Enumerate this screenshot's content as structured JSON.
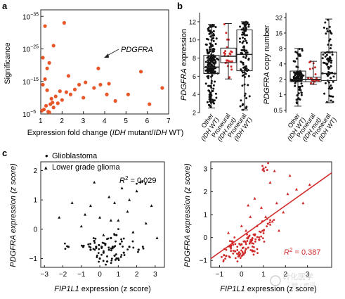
{
  "panels": {
    "a": {
      "letter": "a",
      "xlabel_pre": "Expression fold change (",
      "xlabel_italic": "IDH",
      "xlabel_mid": " mutant/",
      "xlabel_italic2": "IDH",
      "xlabel_post": " WT)",
      "ylabel": "Significance",
      "yticks": [
        "10",
        "10",
        "10",
        "10"
      ],
      "yexps": [
        "−35",
        "−25",
        "−15",
        "−5"
      ],
      "xticks": [
        "1",
        "2",
        "3",
        "4",
        "5",
        "6",
        "7"
      ],
      "annotation": "PDGFRA"
    },
    "b": {
      "letter": "b",
      "left": {
        "ylabel_italic": "PDGFRA",
        "ylabel_rest": " expression",
        "yticks": [
          "2",
          "4",
          "6",
          "8",
          "10",
          "12"
        ],
        "categories": [
          [
            "Other",
            "(IDH WT)"
          ],
          [
            "Proneural",
            "(IDH mut)"
          ],
          [
            "Proneural",
            "(IDH WT)"
          ]
        ]
      },
      "right": {
        "ylabel_italic": "PDGFRA",
        "ylabel_rest": " copy number",
        "yticks": [
          "0.5",
          "1",
          "2",
          "4",
          "8",
          "16",
          "32"
        ],
        "categories": [
          [
            "Other",
            "(IDH WT)"
          ],
          [
            "Proneural",
            "(IDH mut)"
          ],
          [
            "Proneural",
            "(IDH WT)"
          ]
        ]
      }
    },
    "c": {
      "letter": "c",
      "legend": [
        {
          "symbol": "•",
          "label": "Glioblastoma"
        },
        {
          "symbol": "▴",
          "label": "Lower grade glioma"
        }
      ],
      "left": {
        "ylabel_italic": "PDGFRA",
        "ylabel_rest": " expression (z score)",
        "xlabel_italic": "FIP1L1",
        "xlabel_rest": " expression (z score)",
        "r2_label": "R",
        "r2_value": " = 0.029",
        "xticks": [
          "−3",
          "−2",
          "−1",
          "0",
          "1",
          "2",
          "3"
        ],
        "yticks": [
          "−1",
          "0",
          "1",
          "2"
        ]
      },
      "right": {
        "ylabel_italic": "PDGFRA",
        "ylabel_rest": " expression (z score)",
        "xlabel_italic": "FIP1L1",
        "xlabel_rest": " expression (z score)",
        "r2_label": "R",
        "r2_value": " = 0.387",
        "xticks": [
          "−1",
          "0",
          "1",
          "2",
          "3"
        ],
        "yticks": [
          "−1",
          "0",
          "1",
          "2",
          "3"
        ]
      }
    }
  },
  "watermark": {
    "line1": "转化医学",
    "line2": "网 / 资讯"
  },
  "colors": {
    "accent": "#e8572a",
    "red": "#d12a2a",
    "axis": "#222222",
    "pink": "#e98a9a"
  },
  "chart_data": [
    {
      "type": "scatter",
      "panel": "a",
      "xlim": [
        1,
        7
      ],
      "y_scale": "log",
      "ylim": [
        1e-05,
        1e-35
      ],
      "points": [
        [
          1.1,
          1e-14
        ],
        [
          1.2,
          2e-16
        ],
        [
          1.3,
          5e-13
        ],
        [
          1.4,
          3e-06
        ],
        [
          1.5,
          2e-10
        ],
        [
          1.25,
          3e-08
        ],
        [
          1.6,
          1e-07
        ],
        [
          1.8,
          5e-09
        ],
        [
          1.2,
          1e-32
        ],
        [
          1.6,
          1e-26
        ],
        [
          2.1,
          1e-33
        ],
        [
          2.3,
          2e-17
        ],
        [
          2.4,
          1e-11
        ],
        [
          2.6,
          3e-13
        ],
        [
          2.8,
          1e-14
        ],
        [
          3.0,
          1e-10
        ],
        [
          3.1,
          2e-15
        ],
        [
          3.5,
          1e-13
        ],
        [
          3.7,
          1e-19
        ],
        [
          3.8,
          1e-14
        ],
        [
          4.1,
          1e-11
        ],
        [
          4.2,
          5e-15
        ],
        [
          4.5,
          1e-09
        ],
        [
          5.1,
          1e-11
        ],
        [
          5.7,
          1e-18
        ],
        [
          6.1,
          1e-08
        ],
        [
          6.7,
          1e-13
        ],
        [
          1.05,
          1e-06
        ],
        [
          1.15,
          4e-07
        ],
        [
          1.35,
          2e-06
        ],
        [
          1.45,
          1e-08
        ],
        [
          1.55,
          3e-09
        ],
        [
          1.7,
          4e-11
        ],
        [
          1.9,
          1e-12
        ],
        [
          2.0,
          5e-10
        ],
        [
          2.2,
          2e-12
        ],
        [
          1.3,
          1e-19
        ],
        [
          1.1,
          5e-23
        ],
        [
          1.4,
          2e-21
        ]
      ],
      "annotations": [
        {
          "label": "PDGFRA",
          "x": 3.7,
          "y": 1e-19
        }
      ]
    },
    {
      "type": "box",
      "panel": "b-left",
      "ylabel": "PDGFRA expression",
      "categories": [
        "Other (IDH WT)",
        "Proneural (IDH mut)",
        "Proneural (IDH WT)"
      ],
      "boxes": [
        {
          "whisker_low": 2.5,
          "q1": 6.3,
          "median": 7.0,
          "q3": 8.3,
          "whisker_high": 11.7
        },
        {
          "whisker_low": 5.7,
          "q1": 7.5,
          "median": 8.2,
          "q3": 9.1,
          "whisker_high": 11.8
        },
        {
          "whisker_low": 2.3,
          "q1": 6.6,
          "median": 8.4,
          "q3": 11.1,
          "whisker_high": 12.0
        }
      ],
      "ylim": [
        2,
        13
      ]
    },
    {
      "type": "box",
      "panel": "b-right",
      "ylabel": "PDGFRA copy number",
      "y_scale": "log2",
      "categories": [
        "Other (IDH WT)",
        "Proneural (IDH mut)",
        "Proneural (IDH WT)"
      ],
      "boxes": [
        {
          "whisker_low": 0.6,
          "q1": 1.8,
          "median": 2.0,
          "q3": 2.9,
          "whisker_high": 8.0
        },
        {
          "whisker_low": 1.6,
          "q1": 1.8,
          "median": 2.0,
          "q3": 2.2,
          "whisker_high": 4.5
        },
        {
          "whisker_low": 0.7,
          "q1": 1.9,
          "median": 2.6,
          "q3": 6.8,
          "whisker_high": 30.0
        }
      ],
      "ylim": [
        0.45,
        40
      ]
    },
    {
      "type": "scatter",
      "panel": "c-left",
      "xlim": [
        -3.2,
        3.5
      ],
      "ylim": [
        -1.3,
        2.3
      ],
      "r2": 0.029,
      "series": [
        {
          "name": "Glioblastoma",
          "points": [
            [
              0.1,
              -0.6
            ],
            [
              0.3,
              -0.5
            ],
            [
              0.5,
              -0.7
            ],
            [
              0.2,
              -0.8
            ],
            [
              -0.2,
              -0.6
            ],
            [
              0.8,
              -0.9
            ],
            [
              1.1,
              -0.5
            ],
            [
              -0.5,
              -0.7
            ],
            [
              0.6,
              -0.3
            ],
            [
              1.3,
              -0.8
            ],
            [
              0.0,
              -1.0
            ],
            [
              -0.9,
              -0.6
            ],
            [
              0.4,
              -1.1
            ],
            [
              1.6,
              -0.6
            ],
            [
              0.9,
              -0.2
            ],
            [
              -0.3,
              -0.4
            ],
            [
              1.0,
              -1.0
            ],
            [
              2.1,
              -0.7
            ],
            [
              0.7,
              -0.6
            ],
            [
              -1.7,
              -0.6
            ],
            [
              2.2,
              1.6
            ]
          ]
        },
        {
          "name": "Lower grade glioma",
          "points": [
            [
              -0.5,
              0.8
            ],
            [
              0.5,
              1.1
            ],
            [
              1.0,
              0.3
            ],
            [
              1.5,
              0.6
            ],
            [
              -1.0,
              0.1
            ],
            [
              0.0,
              0.4
            ],
            [
              2.0,
              1.3
            ],
            [
              -0.3,
              1.6
            ],
            [
              0.8,
              0.9
            ],
            [
              1.8,
              -0.1
            ],
            [
              -1.5,
              0.9
            ],
            [
              2.5,
              0.2
            ],
            [
              1.2,
              1.4
            ],
            [
              0.2,
              -0.2
            ],
            [
              -0.8,
              0.5
            ],
            [
              3.1,
              -0.3
            ],
            [
              1.6,
              1.0
            ],
            [
              -2.2,
              0.4
            ],
            [
              2.8,
              0.8
            ],
            [
              0.6,
              0.3
            ]
          ]
        }
      ]
    },
    {
      "type": "scatter",
      "panel": "c-right",
      "xlim": [
        -1.4,
        4.1
      ],
      "ylim": [
        -1.3,
        3.3
      ],
      "r2": 0.387,
      "fit_line": {
        "x": [
          -1.4,
          4.1
        ],
        "y": [
          -0.92,
          2.82
        ]
      },
      "series": [
        {
          "name": "Glioblastoma",
          "points": [
            [
              -0.5,
              -0.4
            ],
            [
              -0.3,
              -0.6
            ],
            [
              0.0,
              -0.3
            ],
            [
              0.2,
              -0.5
            ],
            [
              -0.7,
              -0.8
            ],
            [
              0.4,
              -0.2
            ],
            [
              0.6,
              0.1
            ],
            [
              -0.1,
              -0.8
            ],
            [
              0.8,
              -0.1
            ],
            [
              0.3,
              0.0
            ],
            [
              1.0,
              0.3
            ],
            [
              -0.4,
              -0.2
            ],
            [
              0.1,
              -0.7
            ],
            [
              0.5,
              -0.6
            ],
            [
              1.2,
              0.6
            ],
            [
              1.0,
              3.0
            ]
          ]
        },
        {
          "name": "Lower grade glioma",
          "points": [
            [
              0.2,
              0.3
            ],
            [
              0.7,
              0.5
            ],
            [
              1.1,
              0.9
            ],
            [
              1.4,
              0.7
            ],
            [
              0.9,
              1.3
            ],
            [
              1.6,
              1.5
            ],
            [
              2.1,
              1.9
            ],
            [
              0.4,
              0.9
            ],
            [
              1.9,
              1.1
            ],
            [
              2.5,
              2.1
            ],
            [
              1.3,
              2.4
            ],
            [
              0.0,
              0.5
            ],
            [
              2.2,
              2.7
            ],
            [
              0.6,
              1.7
            ],
            [
              3.1,
              2.3
            ],
            [
              1.7,
              0.3
            ],
            [
              0.3,
              1.4
            ],
            [
              2.8,
              1.5
            ],
            [
              -0.6,
              0.2
            ],
            [
              1.5,
              2.9
            ]
          ]
        }
      ]
    }
  ]
}
